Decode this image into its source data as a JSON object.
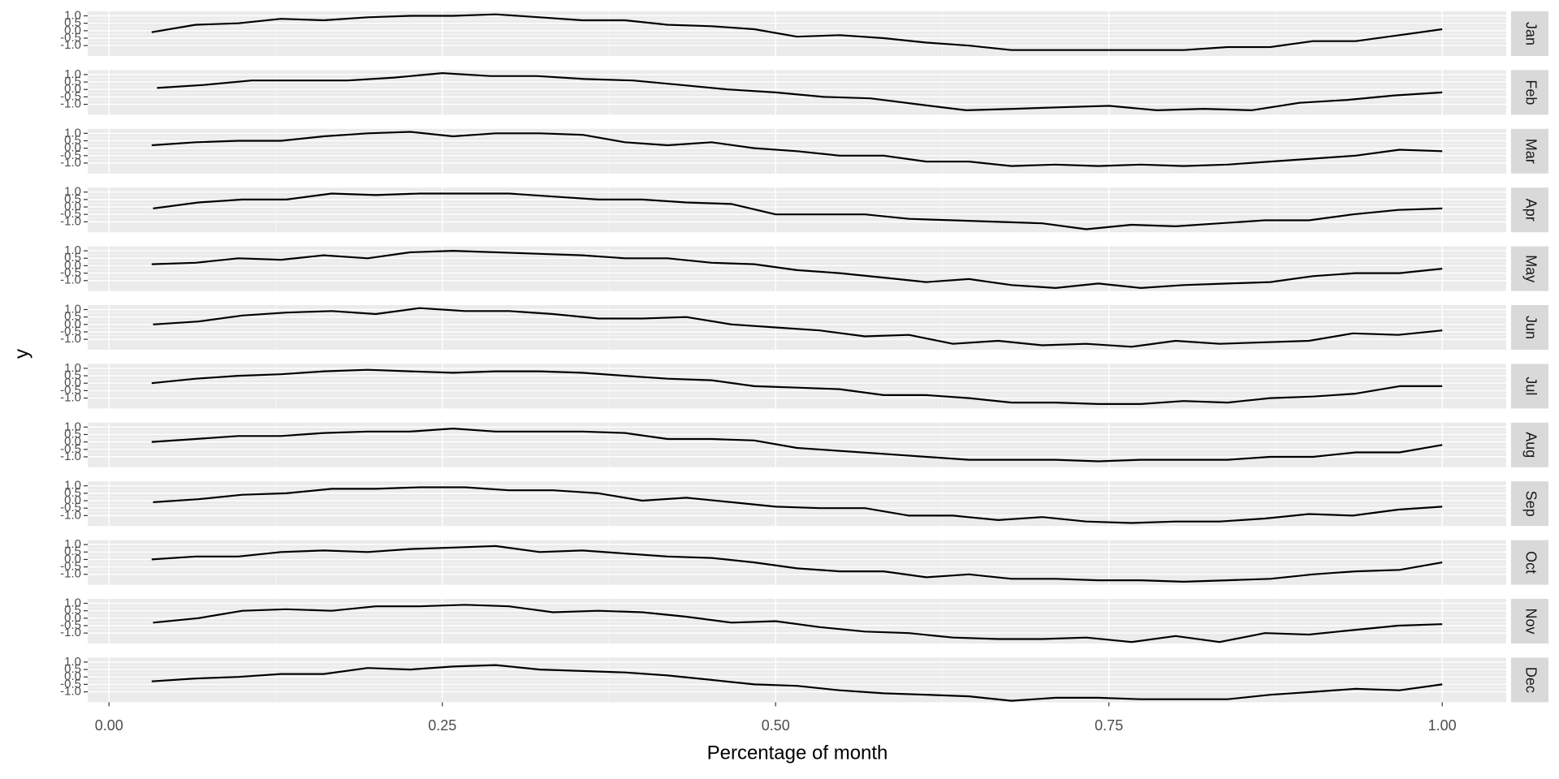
{
  "chart_data": {
    "type": "line",
    "xlabel": "Percentage of month",
    "ylabel": "y",
    "xlim": [
      -0.016,
      1.048
    ],
    "xticks": [
      {
        "value": 0,
        "label": "0.00"
      },
      {
        "value": 0.25,
        "label": "0.25"
      },
      {
        "value": 0.5,
        "label": "0.50"
      },
      {
        "value": 0.75,
        "label": "0.75"
      },
      {
        "value": 1,
        "label": "1.00"
      }
    ],
    "ylim": [
      -1.7,
      1.3
    ],
    "yticks": [
      {
        "value": -1,
        "label": "-1.0"
      },
      {
        "value": -0.5,
        "label": "-0.5"
      },
      {
        "value": 0,
        "label": "0.0"
      },
      {
        "value": 0.5,
        "label": "0.5"
      },
      {
        "value": 1,
        "label": "1.0"
      }
    ],
    "grid": true,
    "facets": "rows",
    "series": [
      {
        "name": "Jan",
        "color": "#000000",
        "x": [
          0.032,
          0.065,
          0.097,
          0.129,
          0.161,
          0.194,
          0.226,
          0.258,
          0.29,
          0.323,
          0.355,
          0.387,
          0.419,
          0.452,
          0.484,
          0.516,
          0.548,
          0.581,
          0.613,
          0.645,
          0.677,
          0.71,
          0.742,
          0.774,
          0.806,
          0.839,
          0.871,
          0.903,
          0.935,
          0.968,
          1
        ],
        "values": [
          -0.1,
          0.4,
          0.5,
          0.8,
          0.7,
          0.9,
          1.0,
          1.0,
          1.1,
          0.9,
          0.7,
          0.7,
          0.4,
          0.3,
          0.1,
          -0.4,
          -0.3,
          -0.5,
          -0.8,
          -1.0,
          -1.3,
          -1.3,
          -1.3,
          -1.3,
          -1.3,
          -1.1,
          -1.1,
          -0.7,
          -0.7,
          -0.3,
          0.1
        ]
      },
      {
        "name": "Feb",
        "color": "#000000",
        "x": [
          0.036,
          0.071,
          0.107,
          0.143,
          0.179,
          0.214,
          0.25,
          0.286,
          0.321,
          0.357,
          0.393,
          0.429,
          0.464,
          0.5,
          0.536,
          0.571,
          0.607,
          0.643,
          0.679,
          0.714,
          0.75,
          0.786,
          0.821,
          0.857,
          0.893,
          0.929,
          0.964,
          1
        ],
        "values": [
          0.1,
          0.3,
          0.6,
          0.6,
          0.6,
          0.8,
          1.1,
          0.9,
          0.9,
          0.7,
          0.6,
          0.3,
          0.0,
          -0.2,
          -0.5,
          -0.6,
          -1.0,
          -1.4,
          -1.3,
          -1.2,
          -1.1,
          -1.4,
          -1.3,
          -1.4,
          -0.9,
          -0.7,
          -0.4,
          -0.2
        ]
      },
      {
        "name": "Mar",
        "color": "#000000",
        "x": [
          0.032,
          0.065,
          0.097,
          0.129,
          0.161,
          0.194,
          0.226,
          0.258,
          0.29,
          0.323,
          0.355,
          0.387,
          0.419,
          0.452,
          0.484,
          0.516,
          0.548,
          0.581,
          0.613,
          0.645,
          0.677,
          0.71,
          0.742,
          0.774,
          0.806,
          0.839,
          0.871,
          0.903,
          0.935,
          0.968,
          1
        ],
        "values": [
          0.2,
          0.4,
          0.5,
          0.5,
          0.8,
          1.0,
          1.1,
          0.8,
          1.0,
          1.0,
          0.9,
          0.4,
          0.2,
          0.4,
          0.0,
          -0.2,
          -0.5,
          -0.5,
          -0.9,
          -0.9,
          -1.2,
          -1.1,
          -1.2,
          -1.1,
          -1.2,
          -1.1,
          -0.9,
          -0.7,
          -0.5,
          -0.1,
          -0.2
        ]
      },
      {
        "name": "Apr",
        "color": "#000000",
        "x": [
          0.033,
          0.067,
          0.1,
          0.133,
          0.167,
          0.2,
          0.233,
          0.267,
          0.3,
          0.333,
          0.367,
          0.4,
          0.433,
          0.467,
          0.5,
          0.533,
          0.567,
          0.6,
          0.633,
          0.667,
          0.7,
          0.733,
          0.767,
          0.8,
          0.833,
          0.867,
          0.9,
          0.933,
          0.967,
          1
        ],
        "values": [
          -0.1,
          0.3,
          0.5,
          0.5,
          0.9,
          0.8,
          0.9,
          0.9,
          0.9,
          0.7,
          0.5,
          0.5,
          0.3,
          0.2,
          -0.5,
          -0.5,
          -0.5,
          -0.8,
          -0.9,
          -1.0,
          -1.1,
          -1.5,
          -1.2,
          -1.3,
          -1.1,
          -0.9,
          -0.9,
          -0.5,
          -0.2,
          -0.1
        ]
      },
      {
        "name": "May",
        "color": "#000000",
        "x": [
          0.032,
          0.065,
          0.097,
          0.129,
          0.161,
          0.194,
          0.226,
          0.258,
          0.29,
          0.323,
          0.355,
          0.387,
          0.419,
          0.452,
          0.484,
          0.516,
          0.548,
          0.581,
          0.613,
          0.645,
          0.677,
          0.71,
          0.742,
          0.774,
          0.806,
          0.839,
          0.871,
          0.903,
          0.935,
          0.968,
          1
        ],
        "values": [
          0.1,
          0.2,
          0.5,
          0.4,
          0.7,
          0.5,
          0.9,
          1.0,
          0.9,
          0.8,
          0.7,
          0.5,
          0.5,
          0.2,
          0.1,
          -0.3,
          -0.5,
          -0.8,
          -1.1,
          -0.9,
          -1.3,
          -1.5,
          -1.2,
          -1.5,
          -1.3,
          -1.2,
          -1.1,
          -0.7,
          -0.5,
          -0.5,
          -0.2
        ]
      },
      {
        "name": "Jun",
        "color": "#000000",
        "x": [
          0.033,
          0.067,
          0.1,
          0.133,
          0.167,
          0.2,
          0.233,
          0.267,
          0.3,
          0.333,
          0.367,
          0.4,
          0.433,
          0.467,
          0.5,
          0.533,
          0.567,
          0.6,
          0.633,
          0.667,
          0.7,
          0.733,
          0.767,
          0.8,
          0.833,
          0.867,
          0.9,
          0.933,
          0.967,
          1
        ],
        "values": [
          0.0,
          0.2,
          0.6,
          0.8,
          0.9,
          0.7,
          1.1,
          0.9,
          0.9,
          0.7,
          0.4,
          0.4,
          0.5,
          0.0,
          -0.2,
          -0.4,
          -0.8,
          -0.7,
          -1.3,
          -1.1,
          -1.4,
          -1.3,
          -1.5,
          -1.1,
          -1.3,
          -1.2,
          -1.1,
          -0.6,
          -0.7,
          -0.4
        ]
      },
      {
        "name": "Jul",
        "color": "#000000",
        "x": [
          0.032,
          0.065,
          0.097,
          0.129,
          0.161,
          0.194,
          0.226,
          0.258,
          0.29,
          0.323,
          0.355,
          0.387,
          0.419,
          0.452,
          0.484,
          0.516,
          0.548,
          0.581,
          0.613,
          0.645,
          0.677,
          0.71,
          0.742,
          0.774,
          0.806,
          0.839,
          0.871,
          0.903,
          0.935,
          0.968,
          1
        ],
        "values": [
          0.0,
          0.3,
          0.5,
          0.6,
          0.8,
          0.9,
          0.8,
          0.7,
          0.8,
          0.8,
          0.7,
          0.5,
          0.3,
          0.2,
          -0.2,
          -0.3,
          -0.4,
          -0.8,
          -0.8,
          -1.0,
          -1.3,
          -1.3,
          -1.4,
          -1.4,
          -1.2,
          -1.3,
          -1.0,
          -0.9,
          -0.7,
          -0.2,
          -0.2
        ]
      },
      {
        "name": "Aug",
        "color": "#000000",
        "x": [
          0.032,
          0.065,
          0.097,
          0.129,
          0.161,
          0.194,
          0.226,
          0.258,
          0.29,
          0.323,
          0.355,
          0.387,
          0.419,
          0.452,
          0.484,
          0.516,
          0.548,
          0.581,
          0.613,
          0.645,
          0.677,
          0.71,
          0.742,
          0.774,
          0.806,
          0.839,
          0.871,
          0.903,
          0.935,
          0.968,
          1
        ],
        "values": [
          0.0,
          0.2,
          0.4,
          0.4,
          0.6,
          0.7,
          0.7,
          0.9,
          0.7,
          0.7,
          0.7,
          0.6,
          0.2,
          0.2,
          0.1,
          -0.4,
          -0.6,
          -0.8,
          -1.0,
          -1.2,
          -1.2,
          -1.2,
          -1.3,
          -1.2,
          -1.2,
          -1.2,
          -1.0,
          -1.0,
          -0.7,
          -0.7,
          -0.2
        ]
      },
      {
        "name": "Sep",
        "color": "#000000",
        "x": [
          0.033,
          0.067,
          0.1,
          0.133,
          0.167,
          0.2,
          0.233,
          0.267,
          0.3,
          0.333,
          0.367,
          0.4,
          0.433,
          0.467,
          0.5,
          0.533,
          0.567,
          0.6,
          0.633,
          0.667,
          0.7,
          0.733,
          0.767,
          0.8,
          0.833,
          0.867,
          0.9,
          0.933,
          0.967,
          1
        ],
        "values": [
          -0.1,
          0.1,
          0.4,
          0.5,
          0.8,
          0.8,
          0.9,
          0.9,
          0.7,
          0.7,
          0.5,
          0.0,
          0.2,
          -0.1,
          -0.4,
          -0.5,
          -0.5,
          -1.0,
          -1.0,
          -1.3,
          -1.1,
          -1.4,
          -1.5,
          -1.4,
          -1.4,
          -1.2,
          -0.9,
          -1.0,
          -0.6,
          -0.4
        ]
      },
      {
        "name": "Oct",
        "color": "#000000",
        "x": [
          0.032,
          0.065,
          0.097,
          0.129,
          0.161,
          0.194,
          0.226,
          0.258,
          0.29,
          0.323,
          0.355,
          0.387,
          0.419,
          0.452,
          0.484,
          0.516,
          0.548,
          0.581,
          0.613,
          0.645,
          0.677,
          0.71,
          0.742,
          0.774,
          0.806,
          0.839,
          0.871,
          0.903,
          0.935,
          0.968,
          1
        ],
        "values": [
          0.0,
          0.2,
          0.2,
          0.5,
          0.6,
          0.5,
          0.7,
          0.8,
          0.9,
          0.5,
          0.6,
          0.4,
          0.2,
          0.1,
          -0.2,
          -0.6,
          -0.8,
          -0.8,
          -1.2,
          -1.0,
          -1.3,
          -1.3,
          -1.4,
          -1.4,
          -1.5,
          -1.4,
          -1.3,
          -1.0,
          -0.8,
          -0.7,
          -0.2
        ]
      },
      {
        "name": "Nov",
        "color": "#000000",
        "x": [
          0.033,
          0.067,
          0.1,
          0.133,
          0.167,
          0.2,
          0.233,
          0.267,
          0.3,
          0.333,
          0.367,
          0.4,
          0.433,
          0.467,
          0.5,
          0.533,
          0.567,
          0.6,
          0.633,
          0.667,
          0.7,
          0.733,
          0.767,
          0.8,
          0.833,
          0.867,
          0.9,
          0.933,
          0.967,
          1
        ],
        "values": [
          -0.3,
          0.0,
          0.5,
          0.6,
          0.5,
          0.8,
          0.8,
          0.9,
          0.8,
          0.4,
          0.5,
          0.4,
          0.1,
          -0.3,
          -0.2,
          -0.6,
          -0.9,
          -1.0,
          -1.3,
          -1.4,
          -1.4,
          -1.3,
          -1.6,
          -1.2,
          -1.6,
          -1.0,
          -1.1,
          -0.8,
          -0.5,
          -0.4
        ]
      },
      {
        "name": "Dec",
        "color": "#000000",
        "x": [
          0.032,
          0.065,
          0.097,
          0.129,
          0.161,
          0.194,
          0.226,
          0.258,
          0.29,
          0.323,
          0.355,
          0.387,
          0.419,
          0.452,
          0.484,
          0.516,
          0.548,
          0.581,
          0.613,
          0.645,
          0.677,
          0.71,
          0.742,
          0.774,
          0.806,
          0.839,
          0.871,
          0.903,
          0.935,
          0.968,
          1
        ],
        "values": [
          -0.3,
          -0.1,
          0.0,
          0.2,
          0.2,
          0.6,
          0.5,
          0.7,
          0.8,
          0.5,
          0.4,
          0.3,
          0.1,
          -0.2,
          -0.5,
          -0.6,
          -0.9,
          -1.1,
          -1.2,
          -1.3,
          -1.6,
          -1.4,
          -1.4,
          -1.5,
          -1.5,
          -1.5,
          -1.2,
          -1.0,
          -0.8,
          -0.9,
          -0.5
        ]
      }
    ]
  }
}
